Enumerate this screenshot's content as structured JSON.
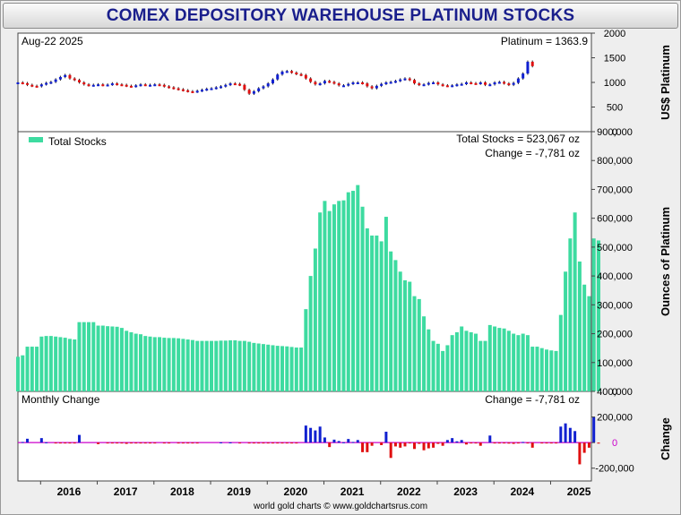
{
  "title": "COMEX DEPOSITORY WAREHOUSE PLATINUM STOCKS",
  "footer": "world gold charts © www.goldchartsrus.com",
  "colors": {
    "title": "#1a1f8c",
    "bars": "#3ddba0",
    "up": "#1020d0",
    "down": "#e01010",
    "zero": "#cc00cc"
  },
  "chart_data": [
    {
      "type": "line",
      "name": "price-panel",
      "date_label": "Aug-22  2025",
      "value_label": "Platinum = 1363.9",
      "ylabel": "US$ Platinum",
      "ylim": [
        0,
        2000
      ],
      "yticks": [
        "0",
        "500",
        "1000",
        "1500",
        "2000"
      ],
      "x_start": 2015.6,
      "x_end": 2025.72,
      "series": [
        {
          "name": "Platinum",
          "x_start": 2015.6,
          "x_step": 0.0833,
          "values": [
            1000,
            985,
            950,
            930,
            920,
            960,
            990,
            1010,
            1060,
            1110,
            1150,
            1080,
            1050,
            1000,
            960,
            940,
            950,
            960,
            945,
            955,
            980,
            960,
            950,
            930,
            920,
            940,
            960,
            950,
            950,
            960,
            950,
            920,
            900,
            880,
            860,
            840,
            820,
            810,
            830,
            850,
            870,
            880,
            900,
            920,
            950,
            980,
            970,
            950,
            850,
            770,
            820,
            880,
            920,
            980,
            1060,
            1160,
            1220,
            1230,
            1200,
            1170,
            1150,
            1080,
            1010,
            960,
            980,
            1030,
            1010,
            980,
            940,
            940,
            970,
            1000,
            1000,
            980,
            920,
            880,
            930,
            970,
            1000,
            1010,
            1030,
            1060,
            1080,
            1050,
            980,
            950,
            960,
            990,
            1000,
            960,
            940,
            930,
            940,
            960,
            970,
            1000,
            985,
            975,
            1000,
            950,
            960,
            1000,
            1010,
            980,
            950,
            990,
            1080,
            1180,
            1420,
            1330
          ]
        }
      ]
    },
    {
      "type": "bar",
      "name": "stocks-panel",
      "legend": "Total Stocks",
      "value_label": "Total Stocks = 523,067 oz",
      "change_label": "Change = -7,781 oz",
      "ylabel": "Ounces of Platinum",
      "ylim": [
        0,
        900000
      ],
      "yticks": [
        "0",
        "100,000",
        "200,000",
        "300,000",
        "400,000",
        "500,000",
        "600,000",
        "700,000",
        "800,000",
        "900,000"
      ],
      "x_start": 2015.6,
      "x_step": 0.0833,
      "values": [
        120000,
        125000,
        155000,
        155000,
        155000,
        190000,
        192000,
        192000,
        190000,
        188000,
        186000,
        182000,
        180000,
        240000,
        240000,
        240000,
        240000,
        228000,
        228000,
        226000,
        225000,
        224000,
        220000,
        210000,
        205000,
        200000,
        198000,
        192000,
        190000,
        188000,
        188000,
        186000,
        185000,
        185000,
        184000,
        182000,
        180000,
        178000,
        175000,
        175000,
        175000,
        175000,
        175000,
        176000,
        176000,
        177000,
        177000,
        175000,
        175000,
        172000,
        168000,
        166000,
        164000,
        162000,
        160000,
        158000,
        157000,
        156000,
        154000,
        152000,
        152000,
        285000,
        400000,
        495000,
        620000,
        660000,
        625000,
        648000,
        660000,
        662000,
        690000,
        695000,
        715000,
        640000,
        565000,
        540000,
        540000,
        520000,
        605000,
        485000,
        455000,
        415000,
        385000,
        380000,
        330000,
        320000,
        260000,
        215000,
        175000,
        165000,
        140000,
        160000,
        195000,
        205000,
        225000,
        210000,
        205000,
        200000,
        175000,
        175000,
        230000,
        225000,
        220000,
        218000,
        210000,
        200000,
        195000,
        200000,
        195000,
        155000,
        155000,
        150000,
        145000,
        142000,
        140000,
        265000,
        415000,
        530000,
        620000,
        450000,
        370000,
        330000,
        530000,
        523067
      ]
    },
    {
      "type": "bar",
      "name": "change-panel",
      "title": "Monthly Change",
      "value_label": "Change = -7,781 oz",
      "ylabel": "Change",
      "ylim": [
        -300000,
        400000
      ],
      "yticks": [
        "-200,000",
        "0",
        "200,000",
        "400,000"
      ],
      "x_start": 2015.6,
      "x_step": 0.0833,
      "values": [
        0,
        5000,
        30000,
        0,
        0,
        35000,
        2000,
        0,
        -2000,
        -2000,
        -2000,
        -4000,
        -2000,
        60000,
        0,
        0,
        0,
        -12000,
        0,
        -2000,
        -1000,
        -1000,
        -4000,
        -10000,
        -5000,
        -5000,
        -2000,
        -6000,
        -2000,
        -2000,
        0,
        -2000,
        -1000,
        0,
        -1000,
        -2000,
        -2000,
        -2000,
        -3000,
        0,
        0,
        0,
        0,
        1000,
        0,
        1000,
        0,
        -2000,
        0,
        -3000,
        -4000,
        -2000,
        -2000,
        -2000,
        -2000,
        -2000,
        -1000,
        -1000,
        -2000,
        -2000,
        0,
        133000,
        115000,
        95000,
        125000,
        40000,
        -35000,
        23000,
        12000,
        2000,
        28000,
        5000,
        20000,
        -75000,
        -75000,
        -25000,
        0,
        -20000,
        85000,
        -120000,
        -30000,
        -40000,
        -30000,
        -5000,
        -50000,
        -10000,
        -60000,
        -45000,
        -40000,
        -10000,
        -25000,
        20000,
        35000,
        10000,
        20000,
        -15000,
        -5000,
        -5000,
        -25000,
        0,
        55000,
        -5000,
        -5000,
        -2000,
        -8000,
        -10000,
        -5000,
        5000,
        -5000,
        -40000,
        0,
        -5000,
        -5000,
        -3000,
        -2000,
        125000,
        150000,
        115000,
        90000,
        -170000,
        -80000,
        -40000,
        200000,
        -7781
      ]
    }
  ],
  "x_axis": {
    "ticks": [
      "2016",
      "2017",
      "2018",
      "2019",
      "2020",
      "2021",
      "2022",
      "2023",
      "2024",
      "2025"
    ]
  }
}
